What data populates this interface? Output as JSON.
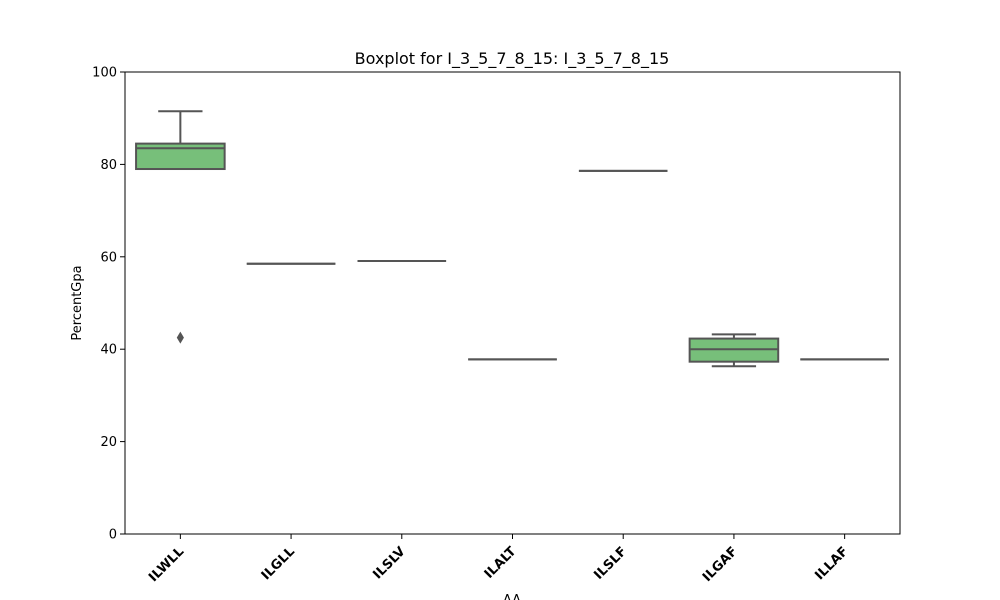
{
  "chart_data": {
    "type": "box",
    "title": "Boxplot for I_3_5_7_8_15: I_3_5_7_8_15",
    "xlabel": "AA",
    "ylabel": "PercentGpa",
    "ylim": [
      0,
      100
    ],
    "yticks": [
      0,
      20,
      40,
      60,
      80,
      100
    ],
    "grid": false,
    "legend": "none",
    "box_color": "#77bf7a",
    "line_color": "#555555",
    "categories": [
      "ILWLL",
      "ILGLL",
      "ILSLV",
      "ILALT",
      "ILSLF",
      "ILGAF",
      "ILLAF"
    ],
    "boxes": [
      {
        "category": "ILWLL",
        "whisker_low": 79.0,
        "q1": 79.0,
        "median": 83.5,
        "q3": 84.5,
        "whisker_high": 91.5,
        "outliers": [
          42.5
        ]
      },
      {
        "category": "ILGLL",
        "whisker_low": 58.5,
        "q1": 58.5,
        "median": 58.5,
        "q3": 58.5,
        "whisker_high": 58.5,
        "outliers": []
      },
      {
        "category": "ILSLV",
        "whisker_low": 59.1,
        "q1": 59.1,
        "median": 59.1,
        "q3": 59.1,
        "whisker_high": 59.1,
        "outliers": []
      },
      {
        "category": "ILALT",
        "whisker_low": 37.8,
        "q1": 37.8,
        "median": 37.8,
        "q3": 37.8,
        "whisker_high": 37.8,
        "outliers": []
      },
      {
        "category": "ILSLF",
        "whisker_low": 78.6,
        "q1": 78.6,
        "median": 78.6,
        "q3": 78.6,
        "whisker_high": 78.6,
        "outliers": []
      },
      {
        "category": "ILGAF",
        "whisker_low": 36.3,
        "q1": 37.3,
        "median": 40.0,
        "q3": 42.3,
        "whisker_high": 43.2,
        "outliers": []
      },
      {
        "category": "ILLAF",
        "whisker_low": 37.8,
        "q1": 37.8,
        "median": 37.8,
        "q3": 37.8,
        "whisker_high": 37.8,
        "outliers": []
      }
    ]
  }
}
